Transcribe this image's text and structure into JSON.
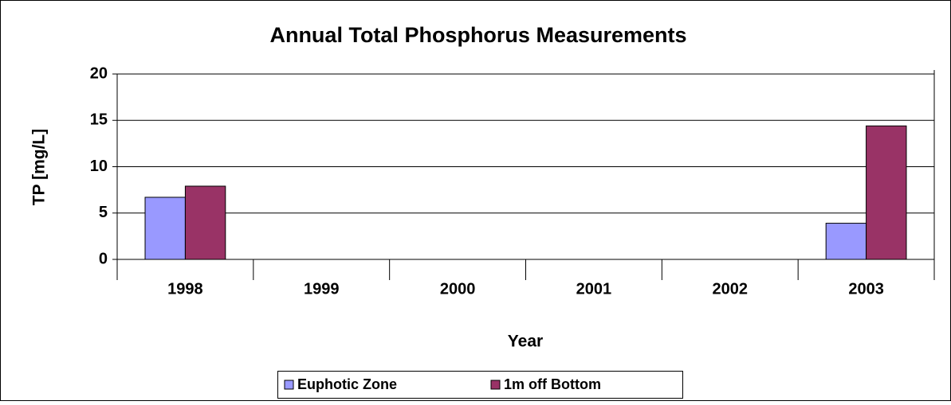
{
  "chart_data": {
    "type": "bar",
    "title": "Annual Total Phosphorus Measurements",
    "x_label": "Year",
    "y_label": "TP [mg/L]",
    "categories": [
      "1998",
      "1999",
      "2000",
      "2001",
      "2002",
      "2003"
    ],
    "series": [
      {
        "name": "Euphotic Zone",
        "color": "#9999ff",
        "values": [
          6.7,
          null,
          null,
          null,
          null,
          3.9
        ]
      },
      {
        "name": "1m off Bottom",
        "color": "#993366",
        "values": [
          7.9,
          null,
          null,
          null,
          null,
          14.4
        ]
      }
    ],
    "ylim": [
      0,
      20
    ],
    "yticks": [
      0,
      5,
      10,
      15,
      20
    ],
    "grid": true,
    "legend": "bottom"
  }
}
